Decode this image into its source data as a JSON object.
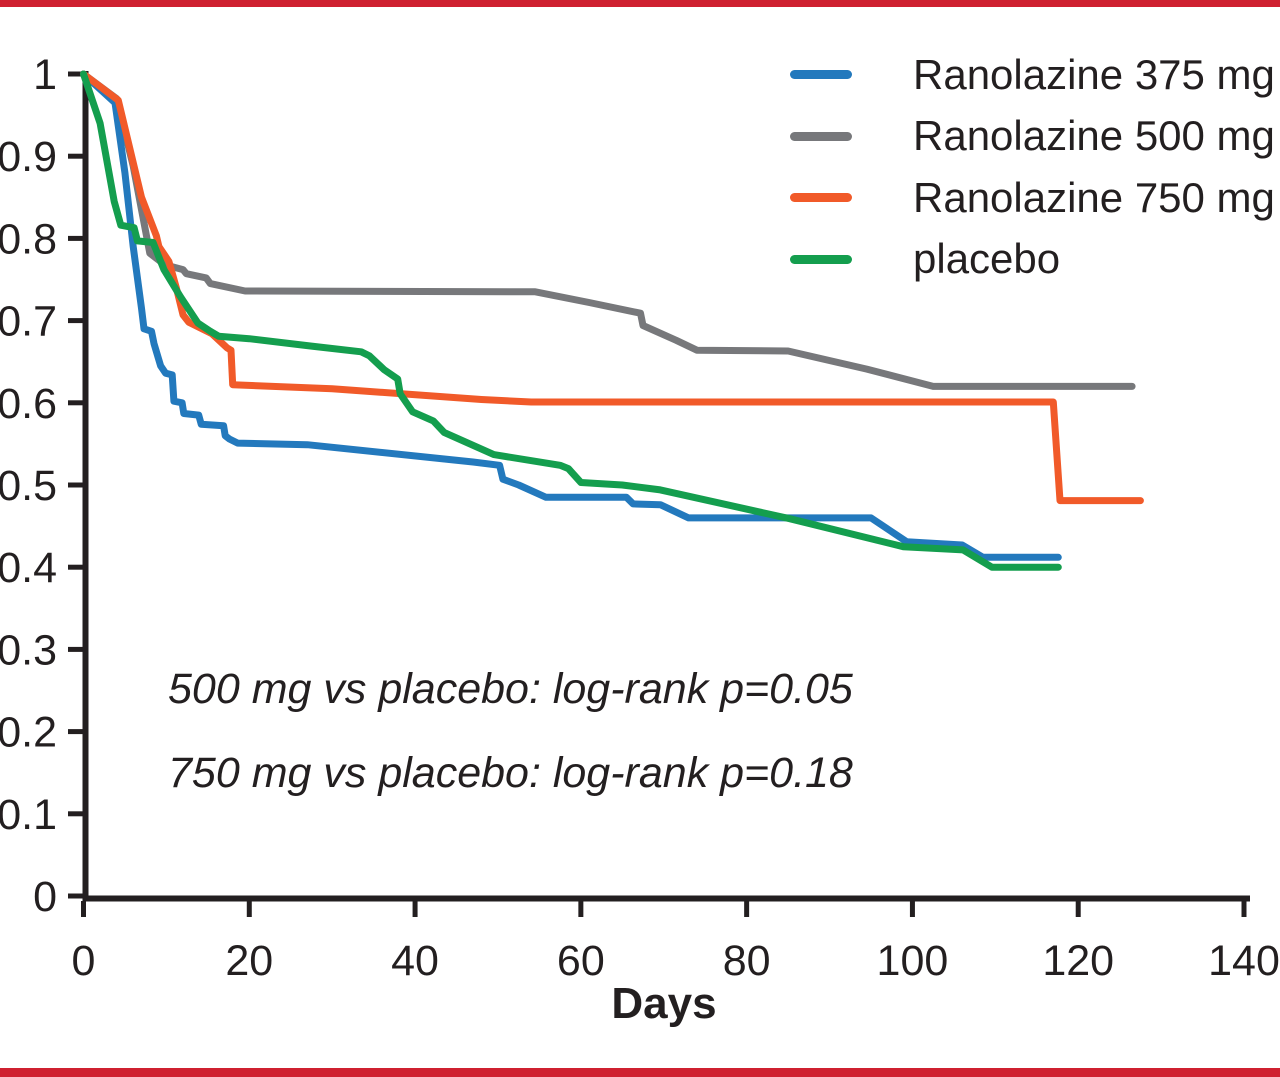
{
  "figure": {
    "background": "#ffffff",
    "top_rule_color": "#cf2030",
    "bottom_rule_color": "#cf2030",
    "text_color": "#231f20",
    "axis_color": "#231f20"
  },
  "chart_data": {
    "type": "line",
    "subtype": "kaplan-meier-survival-curves",
    "title": "",
    "xlabel": "Days",
    "ylabel": "",
    "xlim": [
      0,
      140
    ],
    "ylim": [
      0,
      1
    ],
    "grid": "off",
    "legend_position": "top-right-inside",
    "x_ticks": {
      "values": [
        0,
        20,
        40,
        60,
        80,
        100,
        120,
        140
      ],
      "labels": [
        "0",
        "20",
        "40",
        "60",
        "80",
        "100",
        "120",
        "140"
      ]
    },
    "y_ticks": {
      "values": [
        0,
        0.1,
        0.2,
        0.3,
        0.4,
        0.5,
        0.6,
        0.7,
        0.8,
        0.9,
        1
      ],
      "labels": [
        "0",
        "0.1",
        "0.2",
        "0.3",
        "0.4",
        "0.5",
        "0.6",
        "0.7",
        "0.8",
        "0.9",
        "1"
      ]
    },
    "annotations": [
      "500 mg vs placebo: log-rank p=0.05",
      "750 mg vs placebo: log-rank p=0.18"
    ],
    "series": [
      {
        "name": "Ranolazine 375 mg",
        "color": "#2379bd",
        "points": [
          [
            0,
            1.0
          ],
          [
            3.8,
            0.965
          ],
          [
            5,
            0.88
          ],
          [
            6,
            0.79
          ],
          [
            7,
            0.715
          ],
          [
            7.3,
            0.69
          ],
          [
            8.2,
            0.687
          ],
          [
            8.5,
            0.672
          ],
          [
            9.3,
            0.645
          ],
          [
            9.9,
            0.636
          ],
          [
            10.7,
            0.634
          ],
          [
            10.9,
            0.602
          ],
          [
            11.9,
            0.6
          ],
          [
            12.1,
            0.587
          ],
          [
            13.9,
            0.585
          ],
          [
            14.2,
            0.574
          ],
          [
            16.9,
            0.572
          ],
          [
            17.1,
            0.56
          ],
          [
            17.6,
            0.556
          ],
          [
            18.6,
            0.551
          ],
          [
            27,
            0.549
          ],
          [
            47,
            0.528
          ],
          [
            50.2,
            0.524
          ],
          [
            50.6,
            0.507
          ],
          [
            52.5,
            0.5
          ],
          [
            55.8,
            0.485
          ],
          [
            65.5,
            0.485
          ],
          [
            66.3,
            0.477
          ],
          [
            69.6,
            0.476
          ],
          [
            73,
            0.46
          ],
          [
            95,
            0.46
          ],
          [
            99.3,
            0.431
          ],
          [
            106,
            0.427
          ],
          [
            108.5,
            0.412
          ],
          [
            117.6,
            0.412
          ]
        ]
      },
      {
        "name": "Ranolazine 500 mg",
        "color": "#77787b",
        "points": [
          [
            0,
            1.0
          ],
          [
            4,
            0.97
          ],
          [
            6,
            0.888
          ],
          [
            8,
            0.782
          ],
          [
            9.8,
            0.768
          ],
          [
            12,
            0.762
          ],
          [
            12.4,
            0.757
          ],
          [
            14.8,
            0.752
          ],
          [
            15.3,
            0.745
          ],
          [
            19.5,
            0.736
          ],
          [
            54.5,
            0.735
          ],
          [
            61,
            0.722
          ],
          [
            67.2,
            0.709
          ],
          [
            67.5,
            0.694
          ],
          [
            71.5,
            0.676
          ],
          [
            74,
            0.664
          ],
          [
            85,
            0.663
          ],
          [
            94.5,
            0.641
          ],
          [
            102.5,
            0.62
          ],
          [
            126.5,
            0.62
          ]
        ]
      },
      {
        "name": "Ranolazine 750 mg",
        "color": "#f15a29",
        "points": [
          [
            0,
            1.0
          ],
          [
            4.2,
            0.968
          ],
          [
            7,
            0.85
          ],
          [
            8.8,
            0.803
          ],
          [
            9.1,
            0.79
          ],
          [
            10.3,
            0.772
          ],
          [
            11.2,
            0.74
          ],
          [
            12,
            0.707
          ],
          [
            12.7,
            0.698
          ],
          [
            15.5,
            0.684
          ],
          [
            17.3,
            0.667
          ],
          [
            17.8,
            0.664
          ],
          [
            18,
            0.622
          ],
          [
            30,
            0.617
          ],
          [
            48,
            0.604
          ],
          [
            54,
            0.601
          ],
          [
            117,
            0.601
          ],
          [
            117.8,
            0.481
          ],
          [
            127.5,
            0.481
          ]
        ]
      },
      {
        "name": "placebo",
        "color": "#149e4e",
        "points": [
          [
            0,
            1.0
          ],
          [
            2,
            0.94
          ],
          [
            3.7,
            0.845
          ],
          [
            4.5,
            0.816
          ],
          [
            6.1,
            0.813
          ],
          [
            6.5,
            0.797
          ],
          [
            8.4,
            0.795
          ],
          [
            9.7,
            0.762
          ],
          [
            11.7,
            0.729
          ],
          [
            13.8,
            0.697
          ],
          [
            15.3,
            0.687
          ],
          [
            16.3,
            0.681
          ],
          [
            20,
            0.678
          ],
          [
            27.5,
            0.669
          ],
          [
            33.5,
            0.662
          ],
          [
            34.5,
            0.657
          ],
          [
            36.3,
            0.64
          ],
          [
            37.9,
            0.629
          ],
          [
            38.2,
            0.611
          ],
          [
            39.7,
            0.589
          ],
          [
            42.2,
            0.578
          ],
          [
            43.5,
            0.564
          ],
          [
            49.5,
            0.537
          ],
          [
            57.5,
            0.524
          ],
          [
            58.5,
            0.52
          ],
          [
            60,
            0.503
          ],
          [
            65,
            0.5
          ],
          [
            69.6,
            0.494
          ],
          [
            85.2,
            0.459
          ],
          [
            98.9,
            0.425
          ],
          [
            106.1,
            0.421
          ],
          [
            109.6,
            0.4
          ],
          [
            117.6,
            0.4
          ]
        ]
      }
    ],
    "draw_order": [
      1,
      0,
      2,
      3
    ]
  }
}
